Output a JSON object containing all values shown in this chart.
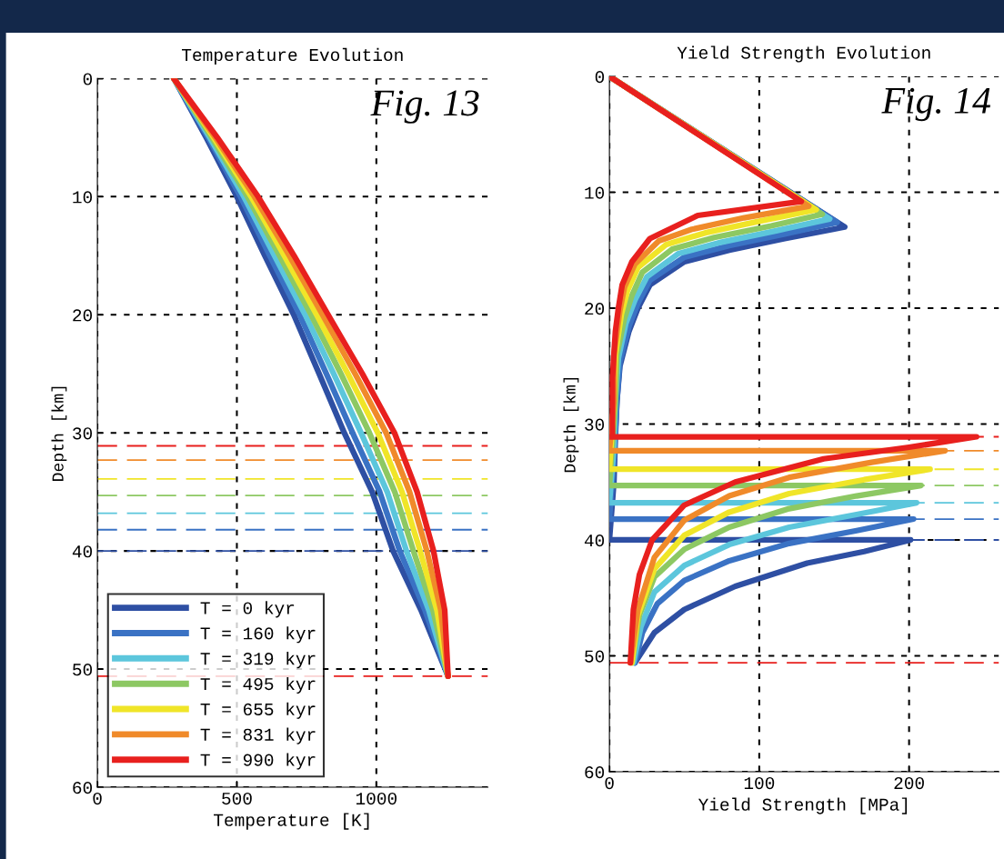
{
  "chart_data": [
    {
      "type": "line",
      "title": "Temperature Evolution",
      "xlabel": "Temperature [K]",
      "ylabel": "Depth [km]",
      "xlim": [
        0,
        1400
      ],
      "xticks": [
        0,
        500,
        1000
      ],
      "ylim": [
        60,
        0
      ],
      "yticks": [
        0,
        10,
        20,
        30,
        40,
        50,
        60
      ],
      "grid": true,
      "legend": "bottom left",
      "line_style": "solid",
      "annotations": [
        "Fig. 13"
      ],
      "series": [
        {
          "name": "T = 0 kyr",
          "color": "#2e4fa3",
          "x": [
            274,
            390,
            500,
            600,
            704,
            795,
            885,
            985,
            1060,
            1160,
            1257
          ],
          "values": [
            0,
            5,
            10,
            15,
            20,
            25,
            30,
            35,
            40,
            45,
            50.6
          ]
        },
        {
          "name": "T = 160 kyr",
          "color": "#3a72c4",
          "x": [
            274,
            397,
            513,
            618,
            725,
            821,
            915,
            1012,
            1084,
            1174,
            1257
          ],
          "values": [
            0,
            5,
            10,
            15,
            20,
            25,
            30,
            35,
            40,
            45,
            50.6
          ]
        },
        {
          "name": "T = 319 kyr",
          "color": "#5cc6dc",
          "x": [
            274,
            403,
            525,
            635,
            745,
            847,
            945,
            1039,
            1108,
            1188,
            1257
          ],
          "values": [
            0,
            5,
            10,
            15,
            20,
            25,
            30,
            35,
            40,
            45,
            50.6
          ]
        },
        {
          "name": "T = 495 kyr",
          "color": "#8dc863",
          "x": [
            274,
            410,
            538,
            653,
            766,
            873,
            975,
            1066,
            1133,
            1203,
            1257
          ],
          "values": [
            0,
            5,
            10,
            15,
            20,
            25,
            30,
            35,
            40,
            45,
            50.6
          ]
        },
        {
          "name": "T = 655 kyr",
          "color": "#f0e528",
          "x": [
            274,
            417,
            551,
            670,
            786,
            898,
            1005,
            1092,
            1157,
            1217,
            1257
          ],
          "values": [
            0,
            5,
            10,
            15,
            20,
            25,
            30,
            35,
            40,
            45,
            50.6
          ]
        },
        {
          "name": "T = 831 kyr",
          "color": "#f08a2a",
          "x": [
            274,
            423,
            563,
            688,
            807,
            924,
            1035,
            1119,
            1181,
            1231,
            1257
          ],
          "values": [
            0,
            5,
            10,
            15,
            20,
            25,
            30,
            35,
            40,
            45,
            50.6
          ]
        },
        {
          "name": "T = 990 kyr",
          "color": "#e8201e",
          "x": [
            274,
            430,
            576,
            705,
            827,
            950,
            1065,
            1146,
            1205,
            1245,
            1257
          ],
          "values": [
            0,
            5,
            10,
            15,
            20,
            25,
            30,
            35,
            40,
            45,
            50.6
          ]
        }
      ],
      "ref_lines": [
        {
          "axis": "y",
          "value": 31.1,
          "color": "#e8201e",
          "line_style": "dashed"
        },
        {
          "axis": "y",
          "value": 32.3,
          "color": "#f08a2a",
          "line_style": "dashed"
        },
        {
          "axis": "y",
          "value": 33.9,
          "color": "#f0e528",
          "line_style": "dashed"
        },
        {
          "axis": "y",
          "value": 35.3,
          "color": "#8dc863",
          "line_style": "dashed"
        },
        {
          "axis": "y",
          "value": 36.8,
          "color": "#5cc6dc",
          "line_style": "dashed"
        },
        {
          "axis": "y",
          "value": 38.2,
          "color": "#3a72c4",
          "line_style": "dashed"
        },
        {
          "axis": "y",
          "value": 40.0,
          "color": "#2e4fa3",
          "line_style": "dashed"
        },
        {
          "axis": "y",
          "value": 50.6,
          "color": "#e8201e",
          "line_style": "dashed"
        }
      ]
    },
    {
      "type": "line",
      "title": "Yield Strength Evolution",
      "xlabel": "Yield Strength [MPa]",
      "ylabel": "Depth [km]",
      "xlim": [
        0,
        260
      ],
      "xticks": [
        0,
        100,
        200
      ],
      "ylim": [
        60,
        0
      ],
      "yticks": [
        0,
        10,
        20,
        30,
        40,
        50,
        60
      ],
      "grid": true,
      "line_style": "solid",
      "annotations": [
        "Fig. 14"
      ],
      "series": [
        {
          "color": "#2e4fa3",
          "x": [
            0,
            157,
            117,
            80,
            50,
            27,
            19,
            13,
            7,
            5,
            4,
            3,
            0,
            201,
            170,
            132,
            84,
            50,
            30,
            17
          ],
          "values": [
            0,
            13.0,
            14,
            15,
            16,
            18,
            20,
            22,
            25,
            28,
            31,
            35,
            40,
            40,
            41,
            42,
            44,
            46,
            48,
            50.6
          ]
        },
        {
          "color": "#3a72c4",
          "x": [
            0,
            152,
            117,
            80,
            50,
            27,
            19,
            13,
            7,
            5,
            3,
            0,
            203,
            165,
            120,
            80,
            50,
            32,
            22,
            17
          ],
          "values": [
            0,
            12.6,
            13.6,
            14.6,
            15.6,
            17.6,
            19.6,
            21.6,
            24.6,
            28,
            33,
            38.2,
            38.2,
            39.2,
            40.3,
            41.8,
            43.5,
            45.5,
            48,
            50.6
          ]
        },
        {
          "color": "#5cc6dc",
          "x": [
            0,
            147,
            112,
            75,
            46,
            25,
            17,
            11,
            6,
            4,
            3,
            0,
            205,
            165,
            120,
            80,
            50,
            30,
            21,
            16
          ],
          "values": [
            0,
            12.3,
            13.3,
            14.3,
            15.3,
            17.3,
            19.3,
            21.3,
            24.3,
            28,
            32,
            36.8,
            36.8,
            37.8,
            38.9,
            40.4,
            42.2,
            44.5,
            47.5,
            50.6
          ]
        },
        {
          "color": "#8dc863",
          "x": [
            0,
            142,
            108,
            70,
            42,
            22,
            15,
            10,
            5,
            4,
            0,
            208,
            165,
            120,
            80,
            50,
            30,
            20,
            15
          ],
          "values": [
            0,
            11.9,
            12.9,
            13.9,
            14.9,
            16.9,
            18.9,
            20.9,
            24,
            28,
            35.3,
            35.3,
            36.2,
            37.3,
            38.9,
            40.8,
            43.2,
            46.5,
            50.6
          ]
        },
        {
          "color": "#f0e528",
          "x": [
            0,
            138,
            100,
            64,
            38,
            19,
            12,
            8,
            4,
            3,
            0,
            214,
            170,
            120,
            80,
            50,
            30,
            19,
            15
          ],
          "values": [
            0,
            11.5,
            12.5,
            13.5,
            14.5,
            16.5,
            18.5,
            20.5,
            24,
            28,
            33.9,
            33.9,
            34.8,
            36,
            37.6,
            39.6,
            42.5,
            46.5,
            50.6
          ]
        },
        {
          "color": "#f08a2a",
          "x": [
            0,
            133,
            90,
            55,
            33,
            17,
            10,
            7,
            3,
            3,
            0,
            224,
            175,
            120,
            80,
            50,
            30,
            19,
            14
          ],
          "values": [
            0,
            11.2,
            12.2,
            13.2,
            14.2,
            16.2,
            18.2,
            20.2,
            24,
            28,
            32.3,
            32.3,
            33.3,
            34.6,
            36.2,
            38.3,
            41.5,
            46,
            50.6
          ]
        },
        {
          "color": "#e8201e",
          "x": [
            0,
            128,
            59,
            27,
            15,
            8.5,
            6,
            4,
            2,
            2,
            0,
            245,
            200,
            143,
            84,
            50,
            28.5,
            20,
            16,
            14
          ],
          "values": [
            0,
            10.8,
            12,
            14,
            16,
            18,
            20,
            22,
            26,
            31.1,
            31.1,
            31.1,
            32,
            33,
            35,
            37,
            40,
            43,
            46,
            50.6
          ]
        }
      ],
      "ref_lines": [
        {
          "axis": "y",
          "value": 31.1,
          "color": "#e8201e",
          "line_style": "dashed"
        },
        {
          "axis": "y",
          "value": 32.3,
          "color": "#f08a2a",
          "line_style": "dashed"
        },
        {
          "axis": "y",
          "value": 33.9,
          "color": "#f0e528",
          "line_style": "dashed"
        },
        {
          "axis": "y",
          "value": 35.3,
          "color": "#8dc863",
          "line_style": "dashed"
        },
        {
          "axis": "y",
          "value": 36.8,
          "color": "#5cc6dc",
          "line_style": "dashed"
        },
        {
          "axis": "y",
          "value": 38.2,
          "color": "#3a72c4",
          "line_style": "dashed"
        },
        {
          "axis": "y",
          "value": 40.0,
          "color": "#2e4fa3",
          "line_style": "dashed"
        },
        {
          "axis": "y",
          "value": 50.6,
          "color": "#e8201e",
          "line_style": "dashed"
        }
      ]
    }
  ]
}
